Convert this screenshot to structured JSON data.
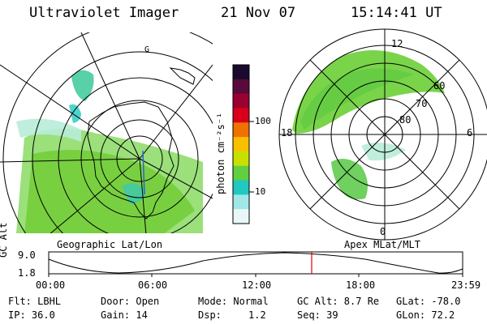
{
  "header": {
    "instrument": "Ultraviolet Imager",
    "date": "21 Nov 07",
    "time": "15:14:41 UT"
  },
  "colorbar": {
    "unit_label": "photon cm⁻²s⁻¹",
    "ticks": [
      "100",
      "10"
    ],
    "colors": [
      "#1a0a2e",
      "#5a0a3a",
      "#9a0030",
      "#d80018",
      "#f07000",
      "#f8c000",
      "#c8e000",
      "#60d040",
      "#20c8c0",
      "#a0e8e8",
      "#e8f8f8"
    ]
  },
  "left_map": {
    "caption": "Geographic Lat/Lon",
    "coastline_label": "G"
  },
  "right_map": {
    "caption": "Apex MLat/MLT",
    "labels": {
      "top": "12",
      "left": "18",
      "right": "6",
      "bottom": "0"
    },
    "lat_labels": [
      "60",
      "70",
      "80"
    ]
  },
  "timeline": {
    "axis_label_top": "GC",
    "axis_label_bottom": "Alt",
    "y_ticks": [
      "9.0",
      "1.8"
    ],
    "x_ticks": [
      "00:00",
      "06:00",
      "12:00",
      "18:00",
      "23:59"
    ],
    "marker_color": "#e00000",
    "marker_fraction": 0.6352
  },
  "footer": {
    "filter": "Flt: LBHL",
    "ip": "IP: 36.0",
    "door": "Door: Open",
    "gain": "Gain: 14",
    "mode": "Mode: Normal",
    "dsp_label": "Dsp:",
    "dsp_value": "1.2",
    "gc_alt": "GC Alt: 8.7 Re",
    "seq": "Seq: 39",
    "glat": "GLat: -78.0",
    "glon": "GLon: 72.2"
  }
}
